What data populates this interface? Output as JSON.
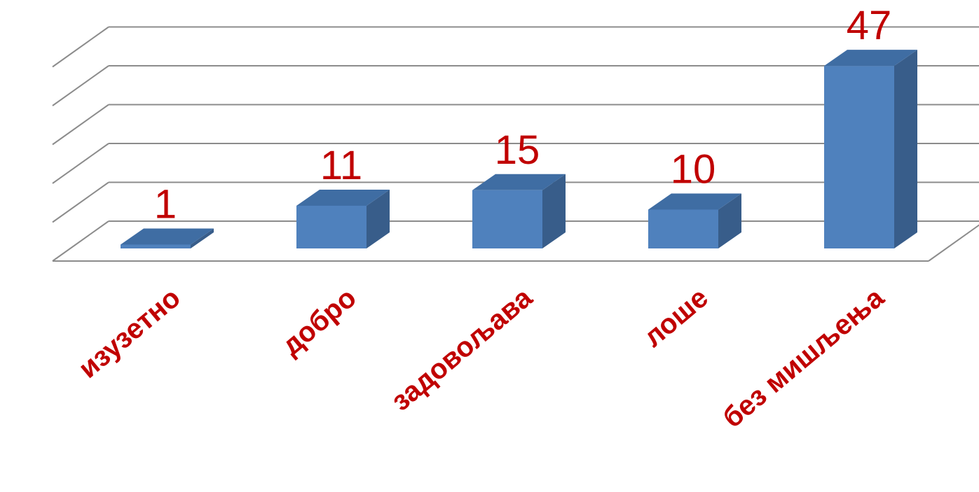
{
  "chart_data": {
    "type": "bar",
    "style": "3d-column",
    "categories": [
      "изузетно",
      "добро",
      "задовољава",
      "лоше",
      "без мишљења"
    ],
    "values": [
      1,
      11,
      15,
      10,
      47
    ],
    "data_labels": [
      "1",
      "11",
      "15",
      "10",
      "47"
    ],
    "title": "",
    "xlabel": "",
    "ylabel": "",
    "ylim": [
      0,
      50
    ],
    "grid": true,
    "legend": "none",
    "colors": {
      "bar_front": "#4F81BD",
      "bar_side": "#385D8A",
      "bar_top": "#3F6DA3",
      "label_text": "#C00000",
      "gridline": "#8C8C8C"
    }
  }
}
